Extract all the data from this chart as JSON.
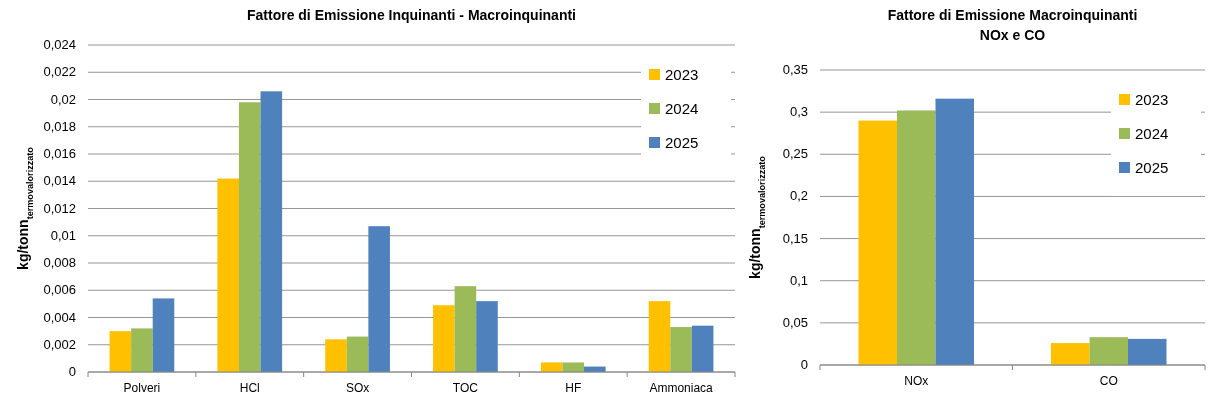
{
  "chart_data": [
    {
      "type": "bar",
      "title": "Fattore di Emissione Inquinanti - Macroinquinanti",
      "ylabel": "kg/tonn$_{termovalorizzato}$",
      "categories": [
        "Polveri",
        "HCl",
        "SOx",
        "TOC",
        "HF",
        "Ammoniaca"
      ],
      "series": [
        {
          "name": "2023",
          "color": "#ffc000",
          "values": [
            0.003,
            0.0142,
            0.0024,
            0.0049,
            0.0007,
            0.0052
          ]
        },
        {
          "name": "2024",
          "color": "#9bbb59",
          "values": [
            0.0032,
            0.0198,
            0.0026,
            0.0063,
            0.0007,
            0.0033
          ]
        },
        {
          "name": "2025",
          "color": "#4f81bd",
          "values": [
            0.0054,
            0.0206,
            0.0107,
            0.0052,
            0.0004,
            0.0034
          ]
        }
      ],
      "ylim": [
        0,
        0.024
      ],
      "yticks": [
        0,
        {
          "value": 0.002,
          "label": "0,002"
        },
        {
          "value": 0.004,
          "label": "0,004"
        },
        {
          "value": 0.006,
          "label": "0,006"
        },
        {
          "value": 0.008,
          "label": "0,008"
        },
        {
          "value": 0.01,
          "label": "0,01"
        },
        {
          "value": 0.012,
          "label": "0,012"
        },
        {
          "value": 0.014,
          "label": "0,014"
        },
        {
          "value": 0.016,
          "label": "0,016"
        },
        {
          "value": 0.018,
          "label": "0,018"
        },
        {
          "value": 0.02,
          "label": "0,02"
        },
        {
          "value": 0.022,
          "label": "0,022"
        },
        {
          "value": 0.024,
          "label": "0,024"
        }
      ],
      "grid": "y",
      "legend": "top right"
    },
    {
      "type": "bar",
      "title": "Fattore di Emissione Macroinquinanti\nNOx e CO",
      "ylabel": "kg/tonn$_{termovalorizzato}$",
      "categories": [
        "NOx",
        "CO"
      ],
      "series": [
        {
          "name": "2023",
          "color": "#ffc000",
          "values": [
            0.29,
            0.026
          ]
        },
        {
          "name": "2024",
          "color": "#9bbb59",
          "values": [
            0.302,
            0.033
          ]
        },
        {
          "name": "2025",
          "color": "#4f81bd",
          "values": [
            0.316,
            0.031
          ]
        }
      ],
      "ylim": [
        0,
        0.35
      ],
      "yticks": [
        0,
        {
          "value": 0.05,
          "label": "0,05"
        },
        {
          "value": 0.1,
          "label": "0,1"
        },
        {
          "value": 0.15,
          "label": "0,15"
        },
        {
          "value": 0.2,
          "label": "0,2"
        },
        {
          "value": 0.25,
          "label": "0,25"
        },
        {
          "value": 0.3,
          "label": "0,3"
        },
        {
          "value": 0.35,
          "label": "0,35"
        }
      ],
      "grid": "y",
      "legend": "top right"
    }
  ]
}
